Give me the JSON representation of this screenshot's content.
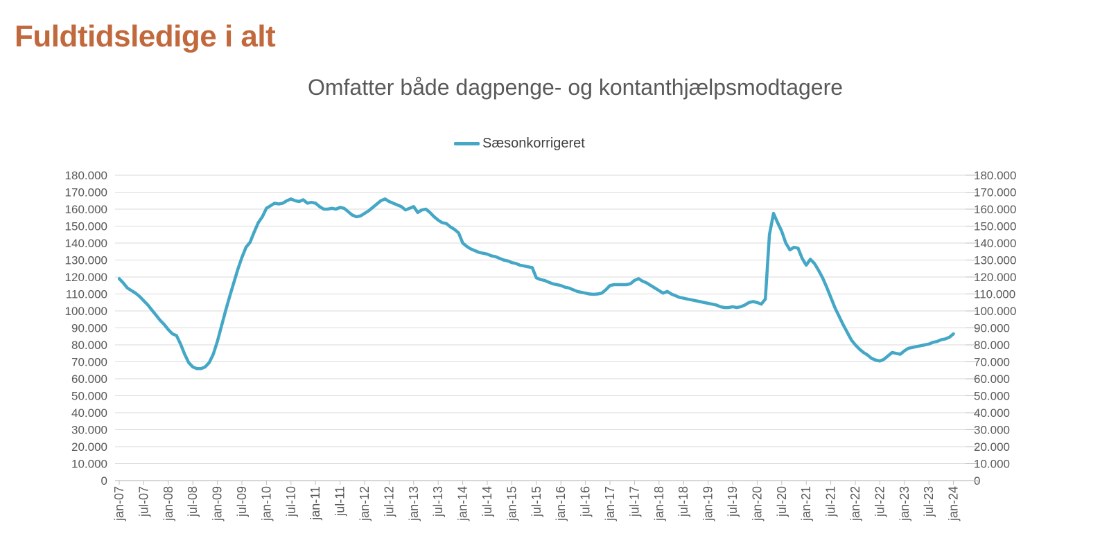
{
  "page": {
    "title": "Fuldtidsledige i alt"
  },
  "chart": {
    "subtitle": "Omfatter både dagpenge- og kontanthjælpsmodtagere",
    "legend": {
      "label": "Sæsonkorrigeret"
    }
  },
  "colors": {
    "title": "#C1693C",
    "subtitle": "#595959",
    "series": "#44A7C6",
    "gridline": "#D9D9D9",
    "axis": "#BFBFBF",
    "axis_label": "#595959",
    "background": "#FFFFFF"
  },
  "chart_data": {
    "type": "line",
    "title": "Omfatter både dagpenge- og kontanthjælpsmodtagere",
    "legend_position": "top",
    "grid": true,
    "x_start": "jan-07",
    "x_end": "jan-24",
    "x_frequency": "monthly",
    "x_tick_interval_months": 6,
    "x_tick_labels": [
      "jan-07",
      "jul-07",
      "jan-08",
      "jul-08",
      "jan-09",
      "jul-09",
      "jan-10",
      "jul-10",
      "jan-11",
      "jul-11",
      "jan-12",
      "jul-12",
      "jan-13",
      "jul-13",
      "jan-14",
      "jul-14",
      "jan-15",
      "jul-15",
      "jan-16",
      "jul-16",
      "jan-17",
      "jul-17",
      "jan-18",
      "jul-18",
      "jan-19",
      "jul-19",
      "jan-20",
      "jul-20",
      "jan-21",
      "jul-21",
      "jan-22",
      "jul-22",
      "jan-23",
      "jul-23",
      "jan-24"
    ],
    "y_min": 0,
    "y_max": 180000,
    "y_tick_step": 10000,
    "y_tick_labels": [
      "0",
      "10.000",
      "20.000",
      "30.000",
      "40.000",
      "50.000",
      "60.000",
      "70.000",
      "80.000",
      "90.000",
      "100.000",
      "110.000",
      "120.000",
      "130.000",
      "140.000",
      "150.000",
      "160.000",
      "170.000",
      "180.000"
    ],
    "series": [
      {
        "name": "Sæsonkorrigeret",
        "monthly_values": [
          119000,
          116500,
          113500,
          112000,
          110500,
          108500,
          106000,
          103500,
          100500,
          97500,
          94500,
          92000,
          89000,
          86500,
          85500,
          80500,
          74500,
          69500,
          67000,
          66000,
          66000,
          67000,
          69500,
          74500,
          82000,
          91000,
          100000,
          108500,
          116500,
          124500,
          131500,
          137500,
          140500,
          146500,
          152000,
          155500,
          160500,
          162000,
          163500,
          163000,
          163500,
          165000,
          166000,
          165000,
          164500,
          165500,
          163500,
          164000,
          163500,
          161500,
          160000,
          160000,
          160500,
          160000,
          161000,
          160500,
          158500,
          156500,
          155500,
          156000,
          157500,
          159000,
          161000,
          163000,
          165000,
          166000,
          164500,
          163500,
          162500,
          161500,
          159500,
          160500,
          161500,
          158000,
          159500,
          160000,
          158000,
          155500,
          153500,
          152000,
          151500,
          149500,
          148000,
          146000,
          140000,
          138000,
          136500,
          135500,
          134500,
          134000,
          133500,
          132500,
          132000,
          131000,
          130000,
          129500,
          128500,
          128000,
          127000,
          126500,
          126000,
          125500,
          119500,
          118500,
          118000,
          117000,
          116000,
          115500,
          115000,
          114000,
          113500,
          112500,
          111500,
          111000,
          110500,
          110000,
          109800,
          110000,
          110500,
          112500,
          115000,
          115500,
          115500,
          115500,
          115500,
          116000,
          118000,
          119000,
          117500,
          116500,
          115000,
          113500,
          112000,
          110500,
          111500,
          110000,
          109000,
          108000,
          107500,
          107000,
          106500,
          106000,
          105500,
          105000,
          104500,
          104000,
          103500,
          102500,
          102000,
          102000,
          102500,
          102000,
          102500,
          103500,
          105000,
          105500,
          105000,
          104000,
          107000,
          145000,
          157500,
          152000,
          147000,
          140000,
          136000,
          137500,
          137000,
          131000,
          127000,
          130500,
          128000,
          124000,
          119500,
          114000,
          108000,
          102000,
          97000,
          92000,
          87500,
          83000,
          80000,
          77500,
          75500,
          74000,
          72000,
          71000,
          70500,
          71500,
          73500,
          75500,
          75000,
          74500,
          76500,
          78000,
          78500,
          79000,
          79500,
          80000,
          80500,
          81500,
          82000,
          83000,
          83500,
          84500,
          86500
        ]
      }
    ]
  }
}
